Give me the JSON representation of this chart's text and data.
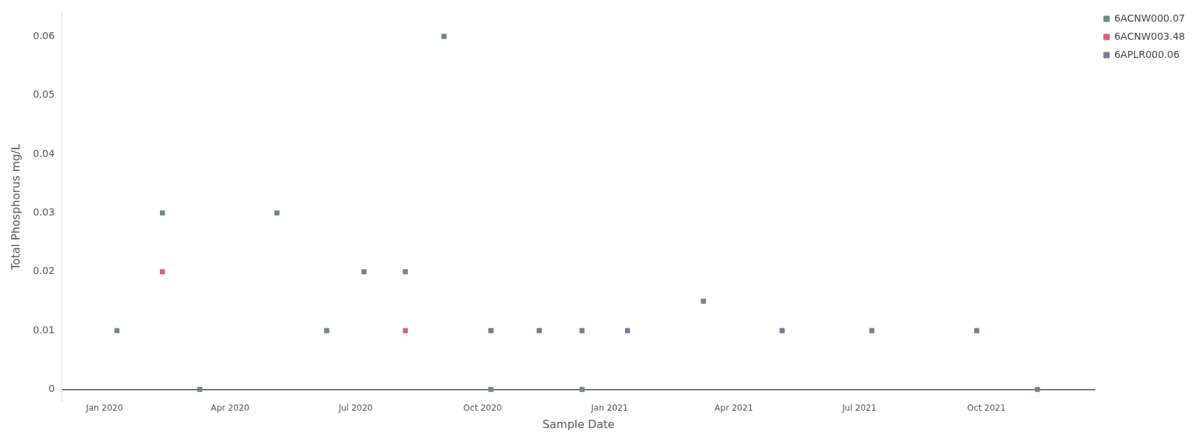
{
  "chart_data": {
    "type": "scatter",
    "xlabel": "Sample Date",
    "ylabel": "Total Phosphorus mg/L",
    "xlim": [
      "2019-12-01",
      "2021-12-19"
    ],
    "xticks": [
      {
        "value": "2020-01-01",
        "label": "Jan 2020"
      },
      {
        "value": "2020-04-01",
        "label": "Apr 2020"
      },
      {
        "value": "2020-07-01",
        "label": "Jul 2020"
      },
      {
        "value": "2020-10-01",
        "label": "Oct 2020"
      },
      {
        "value": "2021-01-01",
        "label": "Jan 2021"
      },
      {
        "value": "2021-04-01",
        "label": "Apr 2021"
      },
      {
        "value": "2021-07-01",
        "label": "Jul 2021"
      },
      {
        "value": "2021-10-01",
        "label": "Oct 2021"
      }
    ],
    "ylim": [
      -0.002,
      0.064
    ],
    "yticks": [
      0,
      0.01,
      0.02,
      0.03,
      0.04,
      0.05,
      0.06
    ],
    "grid": false,
    "legend": "top right",
    "marker": "square",
    "series": [
      {
        "name": "6ACNW000.07",
        "color": "#6f8a80",
        "x": [
          "2020-01-10",
          "2020-02-12",
          "2020-03-10",
          "2020-05-05",
          "2020-06-10",
          "2020-07-07",
          "2020-08-06",
          "2020-09-03",
          "2020-10-07",
          "2020-12-12",
          "2021-03-10",
          "2021-11-07"
        ],
        "values": [
          0.01,
          0.03,
          0,
          0.03,
          0.01,
          0.02,
          0.02,
          0.06,
          0,
          0,
          0.015,
          0
        ]
      },
      {
        "name": "6ACNW003.48",
        "color": "#d9607a",
        "x": [
          "2020-02-12",
          "2020-08-06"
        ],
        "values": [
          0.02,
          0.01
        ]
      },
      {
        "name": "6APLR000.06",
        "color": "#7a7a9a",
        "x": [
          "2020-10-07",
          "2020-11-11",
          "2020-12-12",
          "2021-01-14",
          "2021-05-06",
          "2021-07-10",
          "2021-09-24"
        ],
        "values": [
          0.01,
          0.01,
          0.01,
          0.01,
          0.01,
          0.01,
          0.01
        ]
      }
    ]
  }
}
